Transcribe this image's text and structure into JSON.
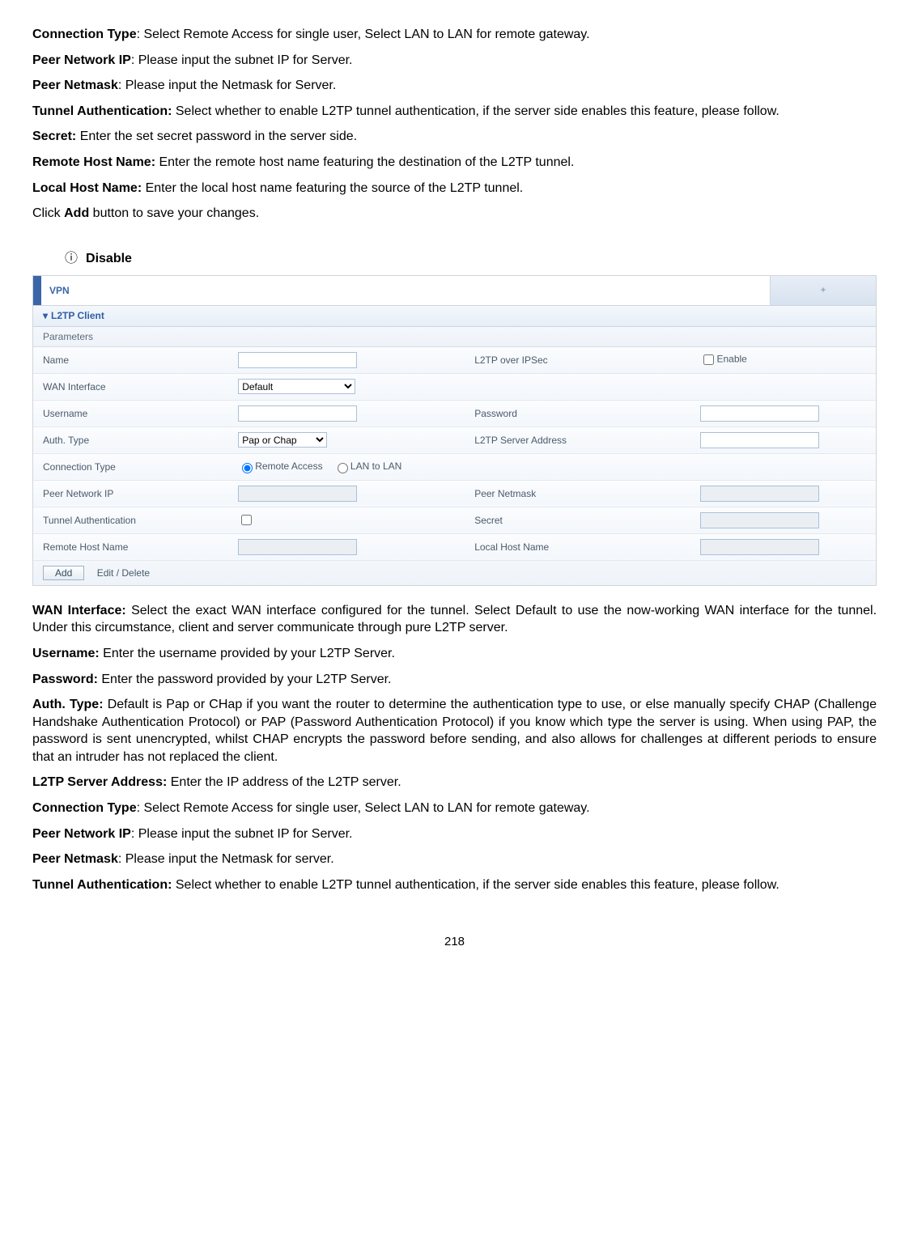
{
  "top_paragraphs": [
    {
      "label": "Connection Type",
      "sep": ": ",
      "text": "Select Remote Access for single user, Select LAN to LAN for remote gateway."
    },
    {
      "label": "Peer Network IP",
      "sep": ": ",
      "text": "Please input the subnet IP for Server."
    },
    {
      "label": "Peer Netmask",
      "sep": ": ",
      "text": "Please input the Netmask for Server."
    },
    {
      "label": "Tunnel Authentication:",
      "sep": " ",
      "text": "Select whether to enable L2TP tunnel authentication, if the server side enables this feature, please follow."
    },
    {
      "label": "Secret:",
      "sep": " ",
      "text": "Enter the set secret password in the server side."
    },
    {
      "label": "Remote Host Name:",
      "sep": " ",
      "text": "Enter the remote host name featuring the destination of the L2TP tunnel."
    },
    {
      "label": "Local Host Name:",
      "sep": " ",
      "text": "Enter the local host name featuring the source of the L2TP tunnel."
    }
  ],
  "click_add_pre": "Click ",
  "click_add_bold": "Add",
  "click_add_post": " button to save your changes.",
  "disable_heading": "Disable",
  "screenshot": {
    "vpn_title": "VPN",
    "section_title": "L2TP Client",
    "parameters": "Parameters",
    "rows": {
      "name_l": "Name",
      "ipsec_l": "L2TP over IPSec",
      "enable_l": "Enable",
      "wan_l": "WAN Interface",
      "wan_val": "Default",
      "user_l": "Username",
      "pass_l": "Password",
      "auth_l": "Auth. Type",
      "auth_val": "Pap or Chap",
      "srv_l": "L2TP Server Address",
      "conn_l": "Connection Type",
      "conn_ra": "Remote Access",
      "conn_ll": "LAN to LAN",
      "pnip_l": "Peer Network IP",
      "pnm_l": "Peer Netmask",
      "ta_l": "Tunnel Authentication",
      "secret_l": "Secret",
      "rhn_l": "Remote Host Name",
      "lhn_l": "Local Host Name"
    },
    "add_btn": "Add",
    "edit_link": "Edit / Delete"
  },
  "bottom_paragraphs": [
    {
      "label": "WAN Interface:",
      "sep": " ",
      "text": "Select the exact WAN interface configured for the tunnel. Select Default to use the now-working WAN interface for the tunnel. Under this circumstance, client and server communicate through pure L2TP server."
    },
    {
      "label": "Username:",
      "sep": " ",
      "text": "Enter the username provided by your L2TP Server."
    },
    {
      "label": "Password:",
      "sep": " ",
      "text": "Enter the password provided by your L2TP Server."
    },
    {
      "label": "Auth. Type:",
      "sep": " ",
      "text": "Default is Pap or CHap if you want the router to determine the authentication type to use, or else manually specify CHAP (Challenge Handshake Authentication Protocol) or PAP (Password Authentication Protocol) if you know which type the server is using. When using PAP, the password is sent unencrypted, whilst CHAP encrypts the password before sending, and also allows for challenges at different periods to ensure that an intruder has not replaced the client."
    },
    {
      "label": "L2TP Server Address:",
      "sep": " ",
      "text": "Enter the IP address of the L2TP server."
    },
    {
      "label": "Connection Type",
      "sep": ": ",
      "text": "Select Remote Access for single user, Select LAN to LAN for remote gateway."
    },
    {
      "label": "Peer Network IP",
      "sep": ": ",
      "text": "Please input the subnet IP for Server."
    },
    {
      "label": "Peer Netmask",
      "sep": ": ",
      "text": "Please input the Netmask for server."
    },
    {
      "label": "Tunnel Authentication:",
      "sep": " ",
      "text": "Select whether to enable L2TP tunnel authentication, if the server side enables this feature, please follow."
    }
  ],
  "page_number": "218"
}
